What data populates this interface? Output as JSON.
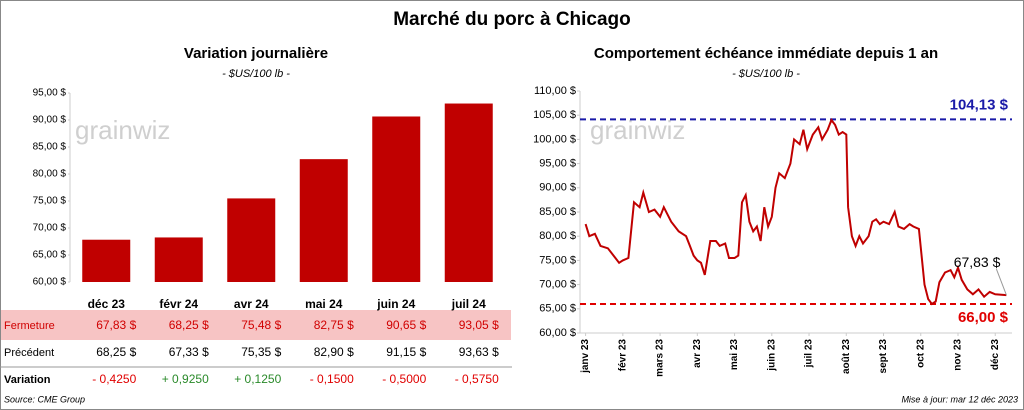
{
  "title": "Marché du porc à Chicago",
  "source": "Source: CME Group",
  "updated": "Mise à jour: mar 12 déc 2023",
  "watermark": "grainwiz",
  "chart_data": [
    {
      "type": "bar",
      "title": "Variation  journalière",
      "subtitle": "- $US/100 lb -",
      "categories": [
        "déc 23",
        "févr 24",
        "avr 24",
        "mai 24",
        "juin 24",
        "juil 24"
      ],
      "values": [
        67.83,
        68.25,
        75.48,
        82.75,
        90.65,
        93.05
      ],
      "value_labels": [
        "67,83  $",
        "68,25  $",
        "75,48  $",
        "82,75  $",
        "90,65  $",
        "93,05  $"
      ],
      "color": "#c00000",
      "ylim": [
        60,
        95
      ],
      "yticks": [
        {
          "value": 60,
          "label": "60,00 $"
        },
        {
          "value": 65,
          "label": "65,00 $"
        },
        {
          "value": 70,
          "label": "70,00 $"
        },
        {
          "value": 75,
          "label": "75,00 $"
        },
        {
          "value": 80,
          "label": "80,00 $"
        },
        {
          "value": 85,
          "label": "85,00 $"
        },
        {
          "value": 90,
          "label": "90,00 $"
        },
        {
          "value": 95,
          "label": "95,00 $"
        }
      ]
    },
    {
      "type": "line",
      "title": "Comportement  échéance immédiate depuis 1 an",
      "subtitle": "- $US/100 lb -",
      "x": [
        0.0,
        0.1,
        0.25,
        0.4,
        0.6,
        0.8,
        0.9,
        1.0,
        1.15,
        1.3,
        1.45,
        1.55,
        1.7,
        1.85,
        2.0,
        2.1,
        2.3,
        2.5,
        2.7,
        2.8,
        2.9,
        3.0,
        3.1,
        3.2,
        3.35,
        3.5,
        3.6,
        3.75,
        3.85,
        4.0,
        4.1,
        4.2,
        4.3,
        4.4,
        4.5,
        4.6,
        4.7,
        4.8,
        4.9,
        5.0,
        5.1,
        5.2,
        5.35,
        5.5,
        5.6,
        5.75,
        5.85,
        5.95,
        6.1,
        6.25,
        6.35,
        6.5,
        6.6,
        6.7,
        6.8,
        6.9,
        7.0,
        7.05,
        7.15,
        7.25,
        7.35,
        7.45,
        7.6,
        7.7,
        7.8,
        7.9,
        8.0,
        8.15,
        8.3,
        8.4,
        8.55,
        8.7,
        8.8,
        8.95,
        9.1,
        9.2,
        9.3,
        9.4,
        9.5,
        9.65,
        9.8,
        9.9,
        10.0,
        10.1,
        10.25,
        10.4,
        10.55,
        10.7,
        10.85,
        11.0,
        11.3
      ],
      "series": [
        {
          "color": "#c00000",
          "values": [
            82.5,
            80,
            80.5,
            78,
            77.5,
            75.5,
            74.5,
            75,
            75.5,
            87,
            86,
            89,
            85,
            85.5,
            84,
            86,
            83,
            81,
            80,
            78,
            76,
            75,
            74.5,
            72,
            79,
            79,
            78,
            78.5,
            75.5,
            75.5,
            76,
            87,
            88.5,
            83,
            81,
            82,
            79,
            86,
            82,
            84,
            90,
            93,
            92,
            95,
            100,
            99,
            102,
            98,
            101,
            102.5,
            100,
            102,
            104,
            103,
            101,
            101.5,
            101,
            86,
            80,
            78,
            80,
            78.5,
            80,
            83,
            83.5,
            82.5,
            83,
            82.5,
            85,
            82,
            81.5,
            82.5,
            82,
            81.5,
            70,
            67,
            66,
            66.5,
            70.5,
            72.5,
            73,
            71.5,
            73.5,
            71,
            69,
            68,
            69,
            67.5,
            68.5,
            68,
            67.83
          ]
        }
      ],
      "xlim": [
        -0.15,
        11.45
      ],
      "xticks": [
        {
          "value": 0,
          "label": "janv 23"
        },
        {
          "value": 1,
          "label": "févr 23"
        },
        {
          "value": 2,
          "label": "mars 23"
        },
        {
          "value": 3,
          "label": "avr 23"
        },
        {
          "value": 4,
          "label": "mai 23"
        },
        {
          "value": 5,
          "label": "juin 23"
        },
        {
          "value": 6,
          "label": "juil 23"
        },
        {
          "value": 7,
          "label": "août 23"
        },
        {
          "value": 8,
          "label": "sept 23"
        },
        {
          "value": 9,
          "label": "oct 23"
        },
        {
          "value": 10,
          "label": "nov 23"
        },
        {
          "value": 11,
          "label": "déc 23"
        }
      ],
      "ylim": [
        60,
        110
      ],
      "yticks": [
        {
          "value": 60,
          "label": "60,00 $"
        },
        {
          "value": 65,
          "label": "65,00 $"
        },
        {
          "value": 70,
          "label": "70,00 $"
        },
        {
          "value": 75,
          "label": "75,00 $"
        },
        {
          "value": 80,
          "label": "80,00 $"
        },
        {
          "value": 85,
          "label": "85,00 $"
        },
        {
          "value": 90,
          "label": "90,00 $"
        },
        {
          "value": 95,
          "label": "95,00 $"
        },
        {
          "value": 100,
          "label": "100,00 $"
        },
        {
          "value": 105,
          "label": "105,00 $"
        },
        {
          "value": 110,
          "label": "110,00 $"
        }
      ],
      "reference_lines": [
        {
          "value": 104.13,
          "label": "104,13 $",
          "color": "#1a1aa8"
        },
        {
          "value": 66,
          "label": "66,00 $",
          "color": "#e00000"
        }
      ],
      "annotations": [
        {
          "text": "67,83 $",
          "x": 11.3,
          "y": 67.83
        }
      ]
    }
  ],
  "table": {
    "row_labels": [
      "Fermeture",
      "Précédent",
      "Variation"
    ],
    "previous": [
      "68,25  $",
      "67,33  $",
      "75,35  $",
      "82,90  $",
      "91,15  $",
      "93,63  $"
    ],
    "variation": [
      "- 0,4250",
      "+ 0,9250",
      "+ 0,1250",
      "- 0,1500",
      "- 0,5000",
      "- 0,5750"
    ],
    "positive_color": "#2a8a2a",
    "negative_color": "#e00000"
  }
}
